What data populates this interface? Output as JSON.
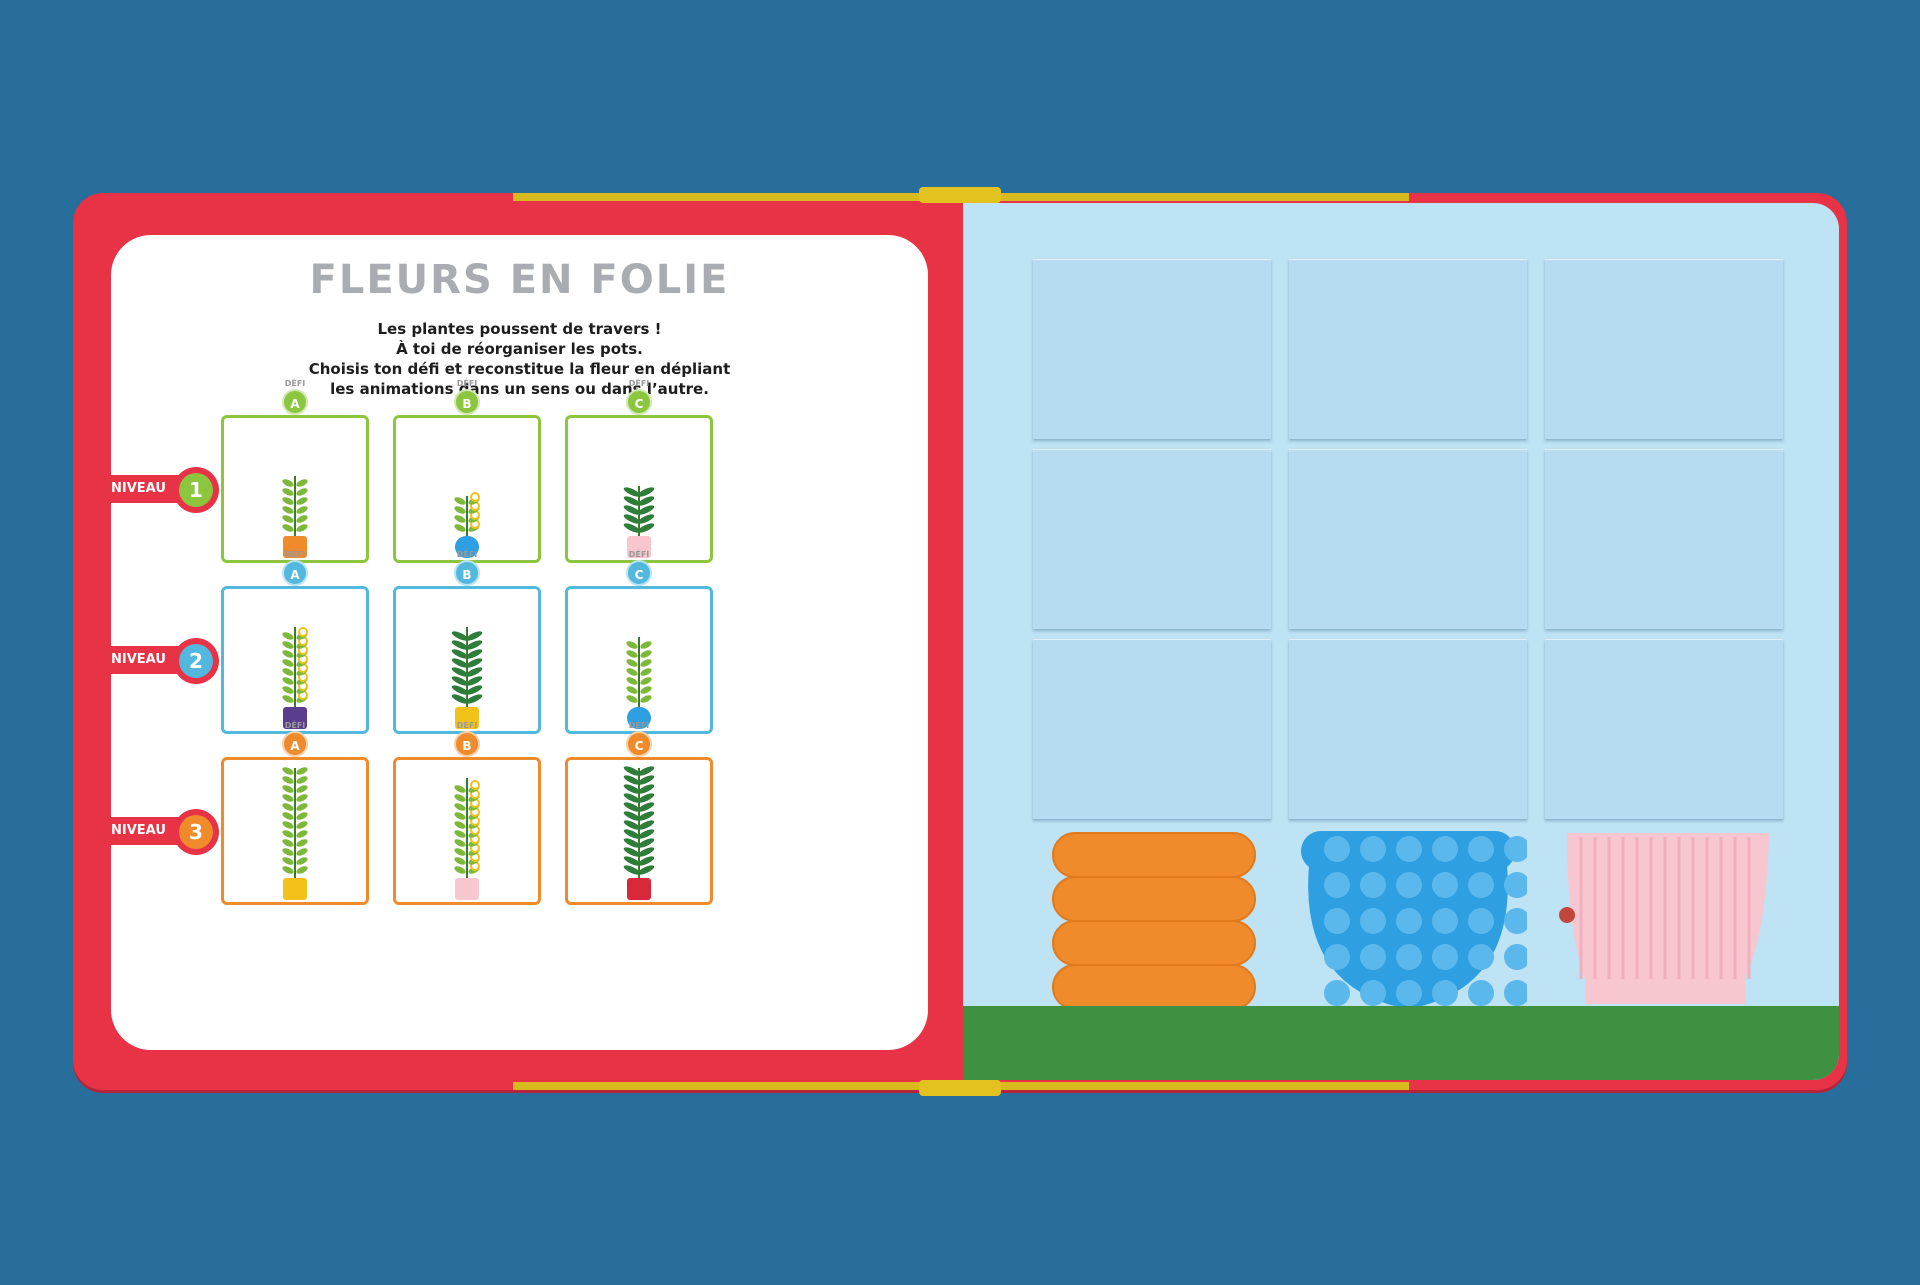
{
  "game": {
    "title": "FLEURS EN FOLIE",
    "instructions": [
      "Les plantes poussent de travers !",
      "À toi de réorganiser les pots.",
      "Choisis ton défi et reconstitue la fleur en dépliant",
      "les animations dans un sens ou dans l’autre."
    ],
    "levels": [
      {
        "label": "NIVEAU",
        "number": "1",
        "color": "#8cc63f",
        "challenges": [
          {
            "defi": "DÉFI",
            "letter": "A",
            "plant": "leafy",
            "pot": "orange-ribbed"
          },
          {
            "defi": "DÉFI",
            "letter": "B",
            "plant": "daisy",
            "pot": "blue-dotted"
          },
          {
            "defi": "DÉFI",
            "letter": "C",
            "plant": "fern",
            "pot": "pink-fluted"
          }
        ]
      },
      {
        "label": "NIVEAU",
        "number": "2",
        "color": "#52b8de",
        "challenges": [
          {
            "defi": "DÉFI",
            "letter": "A",
            "plant": "daisy-tall",
            "pot": "purple"
          },
          {
            "defi": "DÉFI",
            "letter": "B",
            "plant": "fern-tall",
            "pot": "yellow-stand"
          },
          {
            "defi": "DÉFI",
            "letter": "C",
            "plant": "leafy-tall",
            "pot": "blue-dotted"
          }
        ]
      },
      {
        "label": "NIVEAU",
        "number": "3",
        "color": "#f08b2c",
        "challenges": [
          {
            "defi": "DÉFI",
            "letter": "A",
            "plant": "leafy-xl",
            "pot": "yellow-stand"
          },
          {
            "defi": "DÉFI",
            "letter": "B",
            "plant": "daisy-xl",
            "pot": "pink-fluted"
          },
          {
            "defi": "DÉFI",
            "letter": "C",
            "plant": "fern-xl",
            "pot": "red-brick"
          }
        ]
      }
    ]
  },
  "board": {
    "columns": 3,
    "rows": 4,
    "bottom_pots": [
      "orange-ribbed-pot",
      "blue-dotted-pot",
      "pink-fluted-pot"
    ]
  },
  "colors": {
    "background": "#276e9c",
    "cover": "#e73345",
    "page": "#ffffff",
    "board": "#bee3f5",
    "grass": "#3e9141"
  }
}
